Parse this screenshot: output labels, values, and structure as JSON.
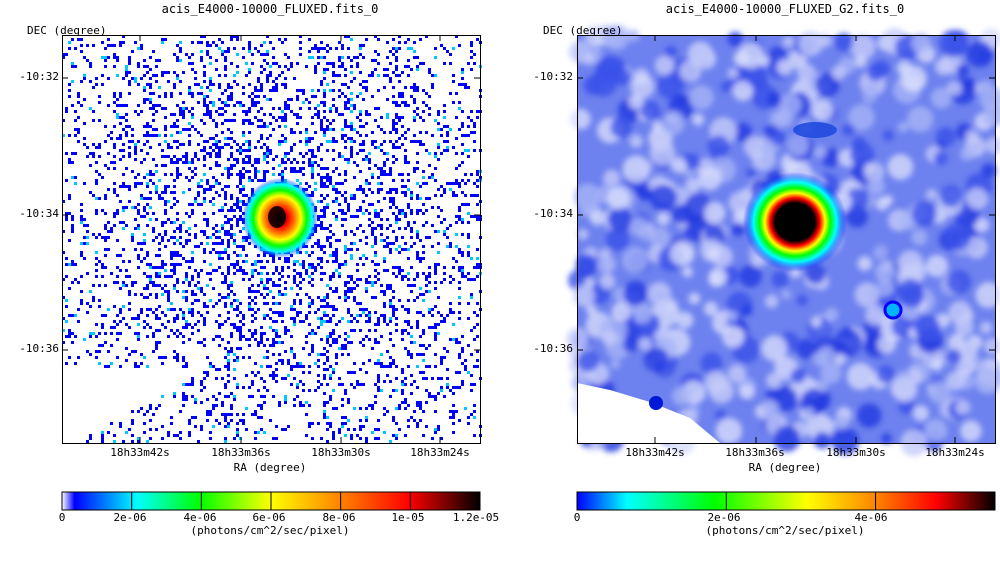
{
  "panels": [
    {
      "title": "acis_E4000-10000_FLUXED.fits_0",
      "y_axis_label": "DEC (degree)",
      "x_axis_label": "RA (degree)",
      "dec_ticks": [
        "-10:32",
        "-10:34",
        "-10:36"
      ],
      "ra_ticks": [
        "18h33m42s",
        "18h33m36s",
        "18h33m30s",
        "18h33m24s"
      ],
      "colorbar_ticks": [
        "0",
        "2e-06",
        "4e-06",
        "6e-06",
        "8e-06",
        "1e-05",
        "1.2e-05"
      ],
      "colorbar_unit": "(photons/cm^2/sec/pixel)"
    },
    {
      "title": "acis_E4000-10000_FLUXED_G2.fits_0",
      "y_axis_label": "DEC (degree)",
      "x_axis_label": "RA (degree)",
      "dec_ticks": [
        "-10:32",
        "-10:34",
        "-10:36"
      ],
      "ra_ticks": [
        "18h33m42s",
        "18h33m36s",
        "18h33m30s",
        "18h33m24s"
      ],
      "colorbar_ticks": [
        "0",
        "2e-06",
        "4e-06"
      ],
      "colorbar_unit": "(photons/cm^2/sec/pixel)"
    }
  ],
  "chart_data": [
    {
      "type": "heatmap",
      "title": "acis_E4000-10000_FLUXED.fits_0",
      "xlabel": "RA (degree)",
      "ylabel": "DEC (degree)",
      "x_ticks": [
        "18h33m42s",
        "18h33m36s",
        "18h33m30s",
        "18h33m24s"
      ],
      "y_ticks": [
        "-10:32",
        "-10:34",
        "-10:36"
      ],
      "colorbar_range": [
        0,
        1.2e-05
      ],
      "colorbar_ticks": [
        0,
        2e-06,
        4e-06,
        6e-06,
        8e-06,
        1e-05,
        1.2e-05
      ],
      "colorbar_unit": "(photons/cm^2/sec/pixel)",
      "colormap": [
        "#ffffff",
        "#0000ff",
        "#00ffff",
        "#00ff00",
        "#ffff00",
        "#ff8000",
        "#ff0000",
        "#000000"
      ]
    },
    {
      "type": "heatmap",
      "title": "acis_E4000-10000_FLUXED_G2.fits_0",
      "xlabel": "RA (degree)",
      "ylabel": "DEC (degree)",
      "x_ticks": [
        "18h33m42s",
        "18h33m36s",
        "18h33m30s",
        "18h33m24s"
      ],
      "y_ticks": [
        "-10:32",
        "-10:34",
        "-10:36"
      ],
      "colorbar_range": [
        0,
        5.6e-06
      ],
      "colorbar_ticks": [
        0,
        2e-06,
        4e-06
      ],
      "colorbar_unit": "(photons/cm^2/sec/pixel)",
      "colormap": [
        "#ffffff",
        "#0000ff",
        "#00ffff",
        "#00ff00",
        "#ffff00",
        "#ff8000",
        "#ff0000",
        "#000000"
      ]
    }
  ]
}
